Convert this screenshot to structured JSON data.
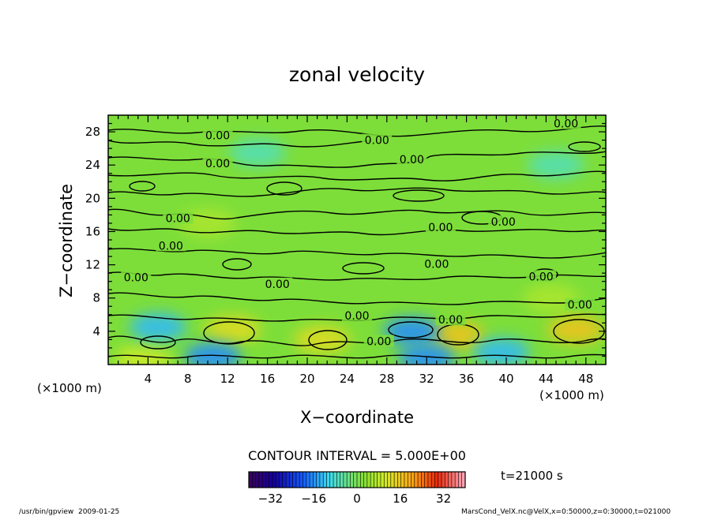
{
  "chart_data": {
    "type": "heatmap",
    "title": "zonal velocity",
    "xlabel": "X−coordinate",
    "ylabel": "Z−coordinate",
    "x_unit": "(×1000 m)",
    "x_unit_right": "(×1000 m)",
    "xlim": [
      0,
      50
    ],
    "ylim": [
      0,
      30
    ],
    "x_ticks": [
      4,
      8,
      12,
      16,
      20,
      24,
      28,
      32,
      36,
      40,
      44,
      48
    ],
    "y_ticks": [
      4,
      8,
      12,
      16,
      20,
      24,
      28
    ],
    "contour_interval_text": "CONTOUR INTERVAL = 5.000E+00",
    "contour_labels": [
      {
        "text": "0.00",
        "x": 11,
        "y": 27.6
      },
      {
        "text": "0.00",
        "x": 11,
        "y": 24.2
      },
      {
        "text": "0.00",
        "x": 27,
        "y": 27.0
      },
      {
        "text": "0.00",
        "x": 30.5,
        "y": 24.7
      },
      {
        "text": "0.00",
        "x": 46,
        "y": 29.0
      },
      {
        "text": "0.00",
        "x": 7,
        "y": 17.6
      },
      {
        "text": "0.00",
        "x": 6.3,
        "y": 14.3
      },
      {
        "text": "0.00",
        "x": 2.8,
        "y": 10.5
      },
      {
        "text": "0.00",
        "x": 17,
        "y": 9.7
      },
      {
        "text": "0.00",
        "x": 33,
        "y": 12.1
      },
      {
        "text": "0.00",
        "x": 33.4,
        "y": 16.5
      },
      {
        "text": "0.00",
        "x": 39.7,
        "y": 17.2
      },
      {
        "text": "0.00",
        "x": 43.5,
        "y": 10.6
      },
      {
        "text": "0.00",
        "x": 47.4,
        "y": 7.2
      },
      {
        "text": "0.00",
        "x": 25,
        "y": 5.9
      },
      {
        "text": "0.00",
        "x": 34.4,
        "y": 5.4
      },
      {
        "text": "0.00",
        "x": 27.2,
        "y": 2.8
      }
    ],
    "warm_blobs": [
      {
        "x": 12.5,
        "y": 4.2,
        "v": 4
      },
      {
        "x": 21.5,
        "y": 3.0,
        "v": 4
      },
      {
        "x": 35.0,
        "y": 3.5,
        "v": 5
      },
      {
        "x": 47.0,
        "y": 4.2,
        "v": 5
      },
      {
        "x": 3.5,
        "y": 0.7,
        "v": 3
      },
      {
        "x": 10.0,
        "y": 17.0,
        "v": 2
      },
      {
        "x": 44.5,
        "y": 8.0,
        "v": 2
      }
    ],
    "cool_blobs": [
      {
        "x": 5.0,
        "y": 4.5,
        "v": -4
      },
      {
        "x": 10.5,
        "y": 1.0,
        "v": -5
      },
      {
        "x": 30.5,
        "y": 4.0,
        "v": -5
      },
      {
        "x": 32.0,
        "y": 0.8,
        "v": -5
      },
      {
        "x": 39.5,
        "y": 1.5,
        "v": -4
      },
      {
        "x": 15.0,
        "y": 25.5,
        "v": -2
      },
      {
        "x": 45.0,
        "y": 24.0,
        "v": -2
      }
    ],
    "colorbar": {
      "range": [
        -40,
        40
      ],
      "tick_labels": [
        "−32",
        "−16",
        "0",
        "16",
        "32"
      ],
      "tick_values": [
        -32,
        -16,
        0,
        16,
        32
      ]
    },
    "time_label": "t=21000 s"
  },
  "footer": {
    "left": "/usr/bin/gpview  2009-01-25",
    "right": "MarsCond_VelX.nc@VelX,x=0:50000,z=0:30000,t=021000"
  }
}
